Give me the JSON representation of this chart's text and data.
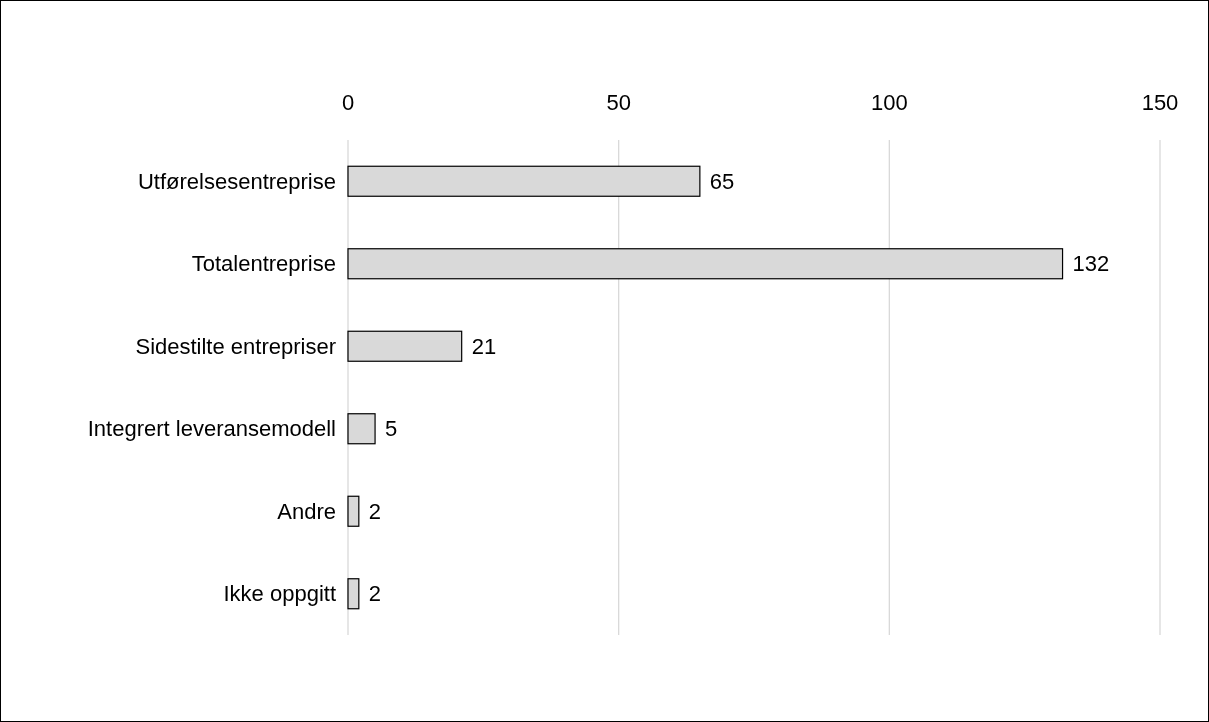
{
  "chart_data": {
    "type": "bar",
    "orientation": "horizontal",
    "categories": [
      "Utførelsesentreprise",
      "Totalentreprise",
      "Sidestilte entrepriser",
      "Integrert leveransemodell",
      "Andre",
      "Ikke oppgitt"
    ],
    "values": [
      65,
      132,
      21,
      5,
      2,
      2
    ],
    "color": "#d9d9d9",
    "xlim": [
      0,
      150
    ],
    "xticks": [
      0,
      50,
      100,
      150
    ],
    "grid": "x",
    "data_labels": true
  }
}
